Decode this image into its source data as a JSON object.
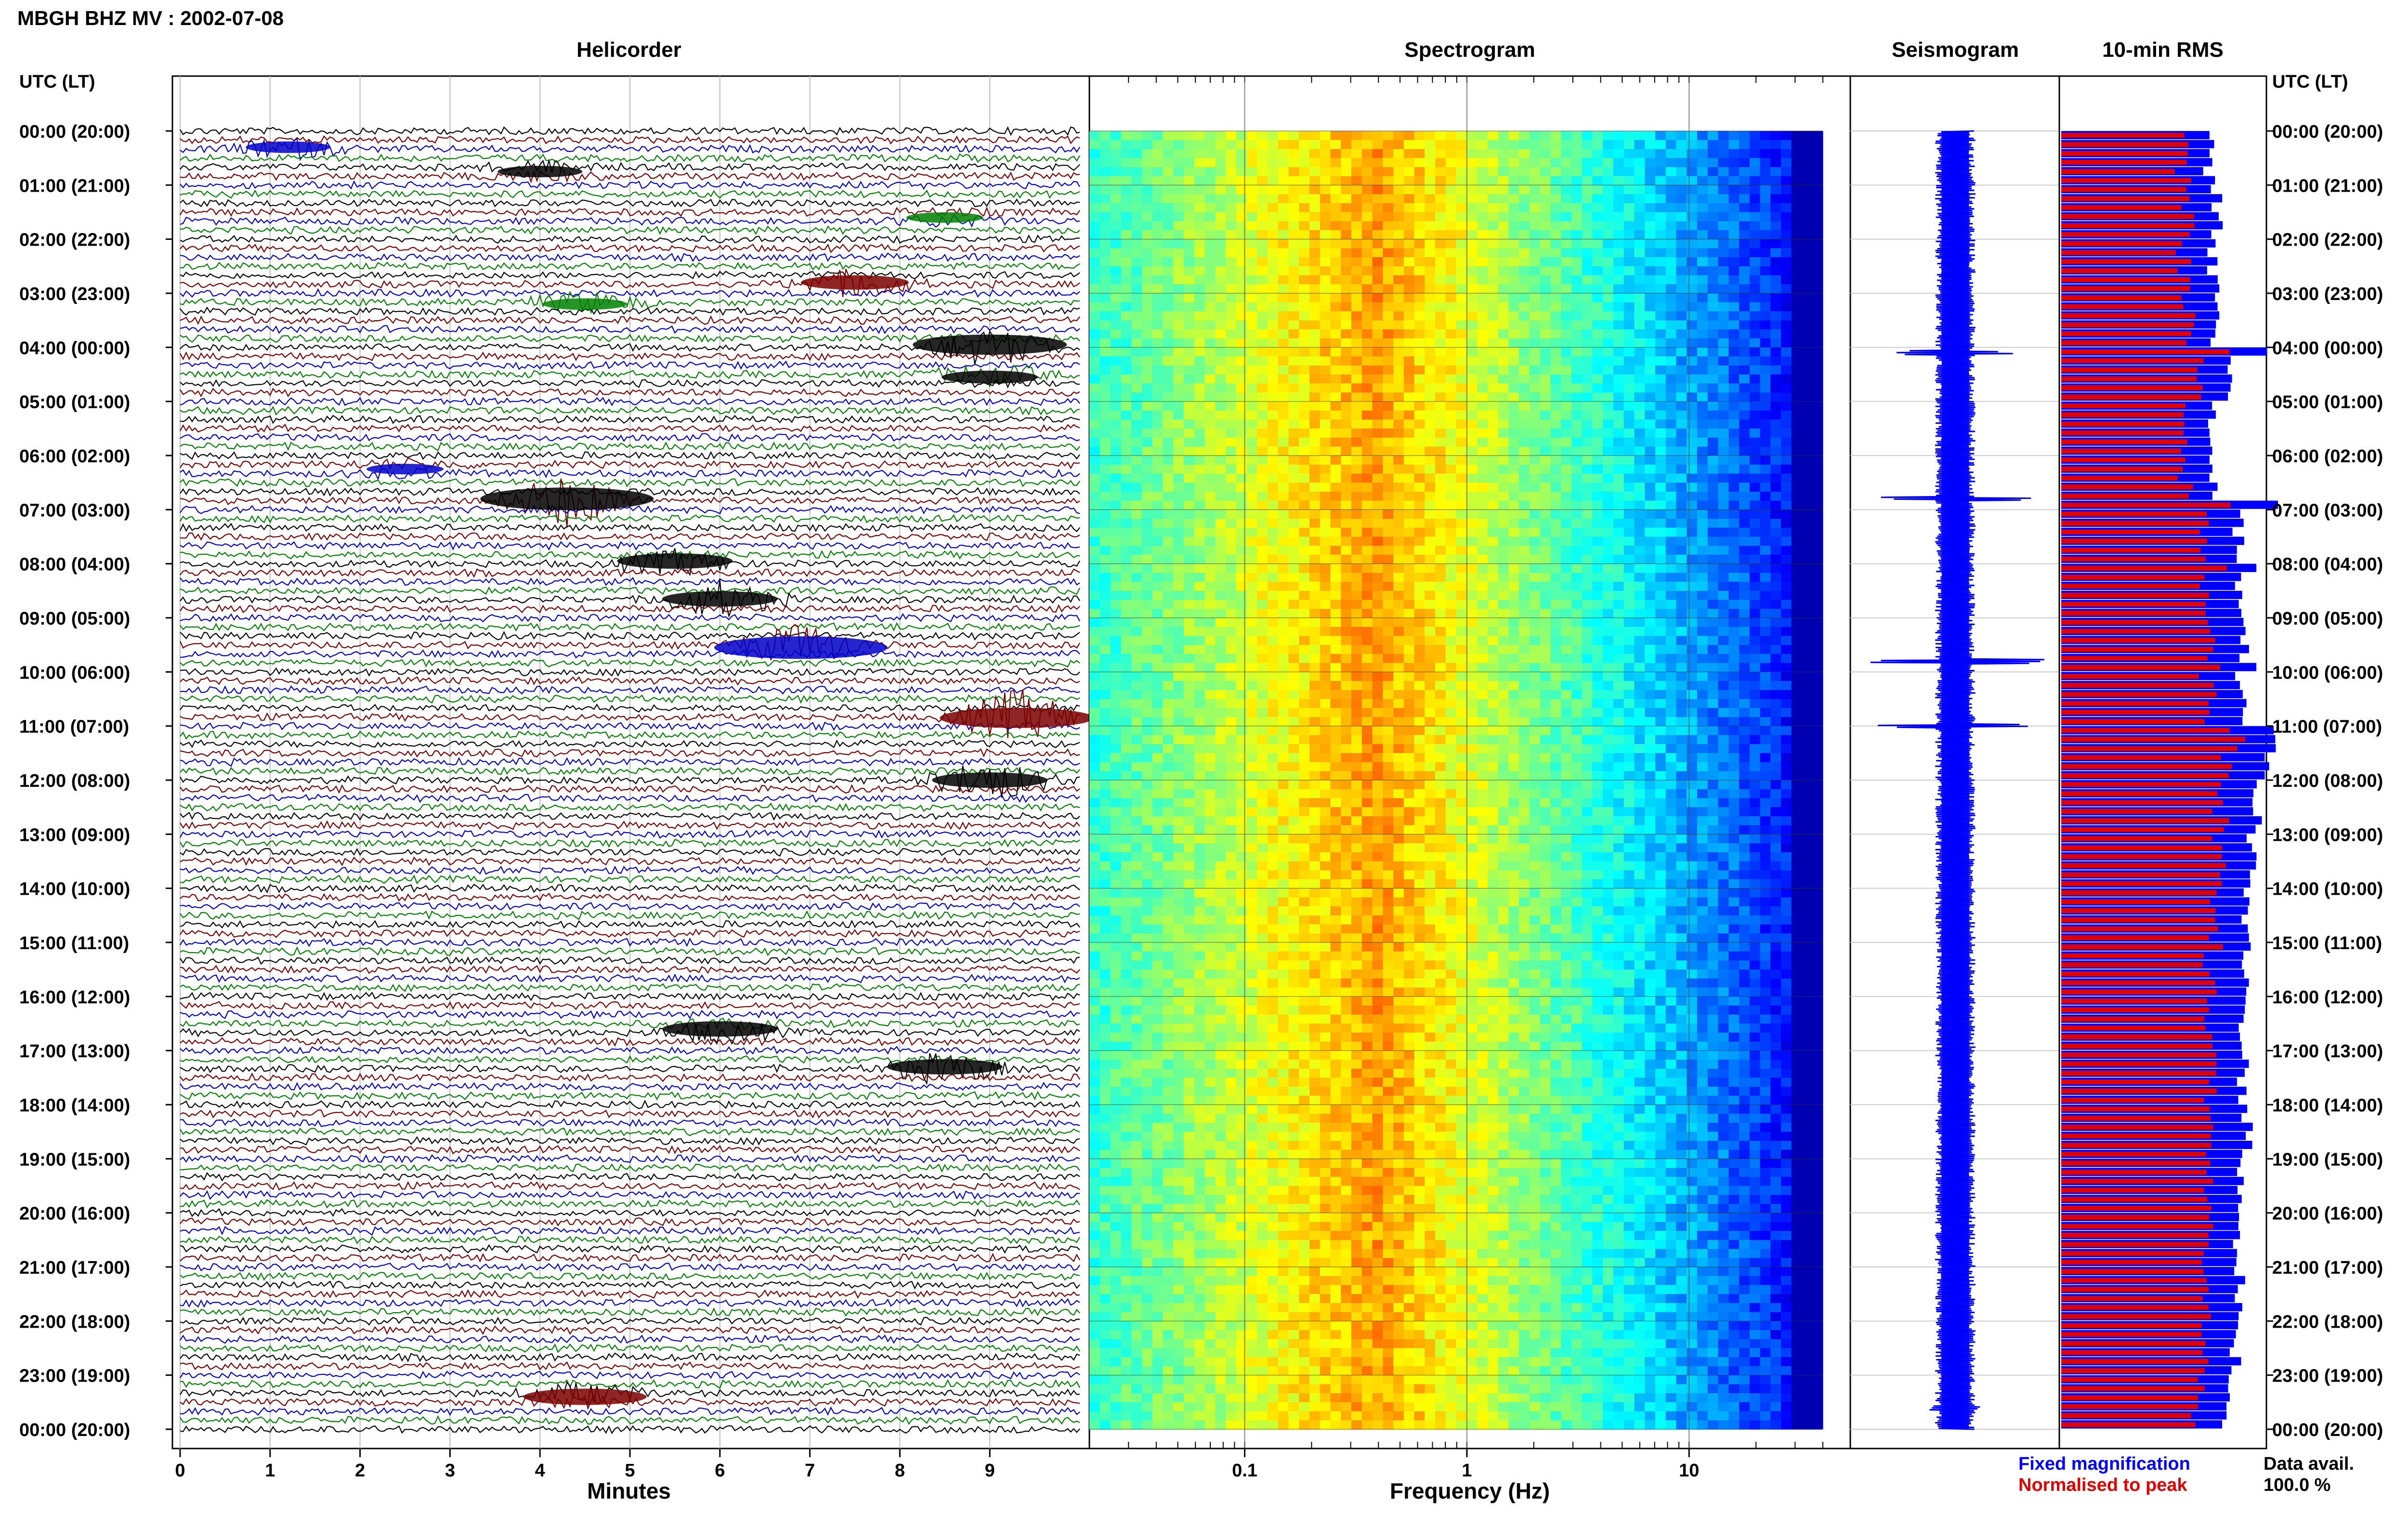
{
  "header": {
    "title": "MBGH BHZ MV : 2002-07-08",
    "utc_label_left": "UTC (LT)",
    "utc_label_right": "UTC (LT)"
  },
  "panels": {
    "helicorder": "Helicorder",
    "spectrogram": "Spectrogram",
    "seismogram": "Seismogram",
    "rms": "10-min RMS"
  },
  "time_labels": [
    "00:00 (20:00)",
    "01:00 (21:00)",
    "02:00 (22:00)",
    "03:00 (23:00)",
    "04:00 (00:00)",
    "05:00 (01:00)",
    "06:00 (02:00)",
    "07:00 (03:00)",
    "08:00 (04:00)",
    "09:00 (05:00)",
    "10:00 (06:00)",
    "11:00 (07:00)",
    "12:00 (08:00)",
    "13:00 (09:00)",
    "14:00 (10:00)",
    "15:00 (11:00)",
    "16:00 (12:00)",
    "17:00 (13:00)",
    "18:00 (14:00)",
    "19:00 (15:00)",
    "20:00 (16:00)",
    "21:00 (17:00)",
    "22:00 (18:00)",
    "23:00 (19:00)",
    "00:00 (20:00)"
  ],
  "footer": {
    "fixed_magnification": "Fixed magnification",
    "normalised_to_peak": "Normalised to peak",
    "data_avail_label": "Data avail.",
    "data_avail_value": "100.0 %"
  },
  "colors": {
    "trace_cycle": [
      "#000000",
      "#7a0000",
      "#0000c8",
      "#008000"
    ],
    "seismogram": "#0000ff",
    "rms_fixed": "#0000ff",
    "rms_normalised": "#e00000"
  },
  "chart_data": [
    {
      "type": "line",
      "name": "helicorder",
      "title": "Helicorder",
      "xlabel": "Minutes",
      "x_ticks": [
        0,
        1,
        2,
        3,
        4,
        5,
        6,
        7,
        8,
        9
      ],
      "xlim": [
        0,
        10
      ],
      "rows_per_hour": 6,
      "hours": 24,
      "events": [
        {
          "hour": 0.3,
          "minute": 1.2,
          "color": "blue",
          "amp": 1.2
        },
        {
          "hour": 0.75,
          "minute": 4.0,
          "color": "black",
          "amp": 1.2
        },
        {
          "hour": 1.6,
          "minute": 8.5,
          "color": "green",
          "amp": 1.0
        },
        {
          "hour": 2.8,
          "minute": 7.5,
          "color": "red",
          "amp": 1.8
        },
        {
          "hour": 3.2,
          "minute": 4.5,
          "color": "green",
          "amp": 1.2
        },
        {
          "hour": 3.95,
          "minute": 9.0,
          "color": "black",
          "amp": 3.0
        },
        {
          "hour": 4.55,
          "minute": 9.0,
          "color": "black",
          "amp": 1.5
        },
        {
          "hour": 6.25,
          "minute": 2.5,
          "color": "blue",
          "amp": 1.0
        },
        {
          "hour": 6.8,
          "minute": 4.3,
          "color": "black",
          "amp": 3.5
        },
        {
          "hour": 7.95,
          "minute": 5.5,
          "color": "black",
          "amp": 2.0
        },
        {
          "hour": 8.65,
          "minute": 6.0,
          "color": "black",
          "amp": 2.0
        },
        {
          "hour": 9.55,
          "minute": 6.9,
          "color": "blue",
          "amp": 3.5
        },
        {
          "hour": 10.85,
          "minute": 9.3,
          "color": "red",
          "amp": 3.0
        },
        {
          "hour": 12.0,
          "minute": 9.0,
          "color": "black",
          "amp": 2.0
        },
        {
          "hour": 16.6,
          "minute": 6.0,
          "color": "black",
          "amp": 2.0
        },
        {
          "hour": 17.3,
          "minute": 8.5,
          "color": "black",
          "amp": 2.0
        },
        {
          "hour": 23.4,
          "minute": 4.5,
          "color": "red",
          "amp": 2.2
        }
      ]
    },
    {
      "type": "heatmap",
      "name": "spectrogram",
      "title": "Spectrogram",
      "xlabel": "Frequency (Hz)",
      "x_scale": "log",
      "xlim": [
        0.02,
        40
      ],
      "x_tick_labels": [
        {
          "value": 0.1,
          "label": "0.1"
        },
        {
          "value": 1,
          "label": "1"
        },
        {
          "value": 10,
          "label": "10"
        }
      ],
      "peak_frequency_hz": 0.4,
      "rows_per_hour": 6,
      "hours": 24
    },
    {
      "type": "line",
      "name": "seismogram",
      "title": "Seismogram",
      "hours": 24,
      "spikes": [
        {
          "hour": 4.1,
          "amp": 3.0
        },
        {
          "hour": 6.8,
          "amp": 4.0
        },
        {
          "hour": 9.8,
          "amp": 4.5
        },
        {
          "hour": 11.0,
          "amp": 4.0
        },
        {
          "hour": 23.6,
          "amp": 1.6
        }
      ]
    },
    {
      "type": "bar",
      "name": "rms",
      "title": "10-min RMS",
      "legend": [
        "Fixed magnification",
        "Normalised to peak"
      ],
      "rows_per_hour": 6,
      "hours": 24,
      "fixed_hourly": [
        0.68,
        0.72,
        0.7,
        0.71,
        0.78,
        0.7,
        0.71,
        0.82,
        0.82,
        0.84,
        0.83,
        0.96,
        0.9,
        0.88,
        0.85,
        0.85,
        0.84,
        0.84,
        0.86,
        0.83,
        0.8,
        0.82,
        0.8,
        0.77
      ],
      "peaks": [
        {
          "hour": 4.05,
          "value": 0.95
        },
        {
          "hour": 6.8,
          "value": 1.0
        },
        {
          "hour": 8.05,
          "value": 0.9
        },
        {
          "hour": 9.8,
          "value": 0.9
        },
        {
          "hour": 11.0,
          "value": 0.98
        }
      ]
    }
  ]
}
